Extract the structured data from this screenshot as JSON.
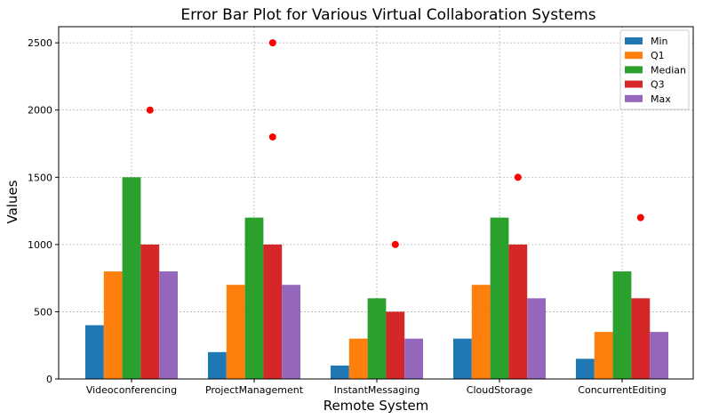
{
  "chart_data": {
    "type": "bar",
    "title": "Error Bar Plot for Various Virtual Collaboration Systems",
    "xlabel": "Remote System",
    "ylabel": "Values",
    "ylim": [
      0,
      2620
    ],
    "yticks": [
      0,
      500,
      1000,
      1500,
      2000,
      2500
    ],
    "grid": true,
    "legend_position": "top-right",
    "categories": [
      "Videoconferencing",
      "ProjectManagement",
      "InstantMessaging",
      "CloudStorage",
      "ConcurrentEditing"
    ],
    "series": [
      {
        "name": "Min",
        "color": "#1f77b4",
        "values": [
          400,
          200,
          100,
          300,
          150
        ]
      },
      {
        "name": "Q1",
        "color": "#ff7f0e",
        "values": [
          800,
          700,
          300,
          700,
          350
        ]
      },
      {
        "name": "Median",
        "color": "#2ca02c",
        "values": [
          1500,
          1200,
          600,
          1200,
          800
        ]
      },
      {
        "name": "Q3",
        "color": "#d62728",
        "values": [
          1000,
          1000,
          500,
          1000,
          600
        ]
      },
      {
        "name": "Max",
        "color": "#9467bd",
        "values": [
          800,
          700,
          300,
          600,
          350
        ]
      }
    ],
    "outliers": {
      "color": "#ff0000",
      "points": [
        {
          "category": "Videoconferencing",
          "values": [
            2000
          ]
        },
        {
          "category": "ProjectManagement",
          "values": [
            1800,
            2500
          ]
        },
        {
          "category": "InstantMessaging",
          "values": [
            1000
          ]
        },
        {
          "category": "CloudStorage",
          "values": [
            1500
          ]
        },
        {
          "category": "ConcurrentEditing",
          "values": [
            1200
          ]
        }
      ]
    }
  }
}
